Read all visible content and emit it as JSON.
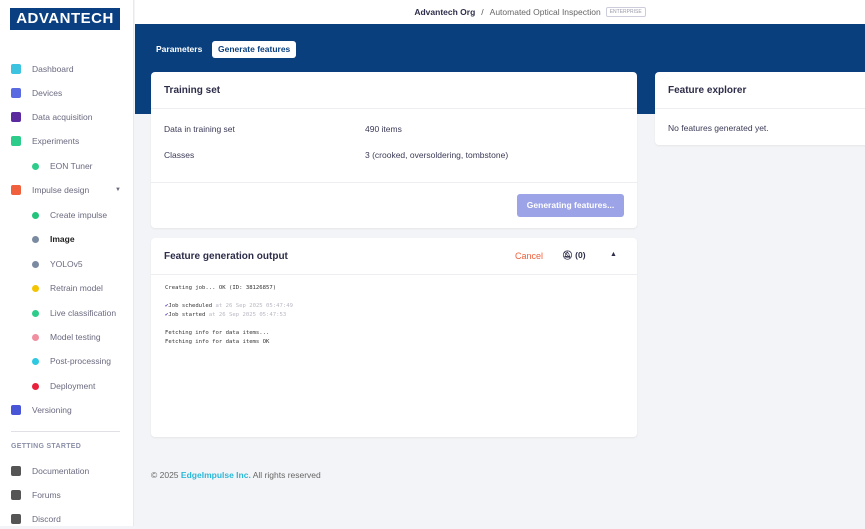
{
  "brand": {
    "logo": "ADVANTECH"
  },
  "header": {
    "org": "Advantech Org",
    "separator": "/",
    "project": "Automated Optical Inspection",
    "badge": "ENTERPRISE"
  },
  "sidebar": {
    "items": [
      {
        "label": "Dashboard",
        "icon": "monitor-icon",
        "color": "#3bc3e0"
      },
      {
        "label": "Devices",
        "icon": "chip-icon",
        "color": "#5a6ae0"
      },
      {
        "label": "Data acquisition",
        "icon": "database-icon",
        "color": "#5b2a9e"
      },
      {
        "label": "Experiments",
        "icon": "grid-icon",
        "color": "#2ecc8a"
      },
      {
        "label": "EON Tuner",
        "icon": "compass-icon",
        "color": "#2ecc8a"
      },
      {
        "label": "Impulse design",
        "icon": "pulse-icon",
        "color": "#f0603c"
      },
      {
        "label": "Create impulse",
        "icon": "dot-icon",
        "color": "#22c37a"
      },
      {
        "label": "Image",
        "icon": "dot-icon",
        "color": "#7a8aa0"
      },
      {
        "label": "YOLOv5",
        "icon": "dot-icon",
        "color": "#7a8aa0"
      },
      {
        "label": "Retrain model",
        "icon": "shuffle-icon",
        "color": "#f5c400"
      },
      {
        "label": "Live classification",
        "icon": "network-icon",
        "color": "#2ecc8a"
      },
      {
        "label": "Model testing",
        "icon": "clipboard-check-icon",
        "color": "#f08fa0"
      },
      {
        "label": "Post-processing",
        "icon": "upload-box-icon",
        "color": "#2ec8e0"
      },
      {
        "label": "Deployment",
        "icon": "gift-icon",
        "color": "#e8203c"
      },
      {
        "label": "Versioning",
        "icon": "branch-icon",
        "color": "#4a56d8"
      }
    ],
    "section": "GETTING STARTED",
    "help": [
      {
        "label": "Documentation",
        "icon": "docs-icon"
      },
      {
        "label": "Forums",
        "icon": "chat-icon"
      },
      {
        "label": "Discord",
        "icon": "discord-icon"
      }
    ]
  },
  "tabs": {
    "parameters": "Parameters",
    "generate": "Generate features"
  },
  "training": {
    "title": "Training set",
    "rows": [
      {
        "label": "Data in training set",
        "value": "490 items"
      },
      {
        "label": "Classes",
        "value": "3 (crooked, oversoldering, tombstone)"
      }
    ],
    "button": "Generating features..."
  },
  "output": {
    "title": "Feature generation output",
    "cancel": "Cancel",
    "notify": "(0)",
    "log": {
      "l1": "Creating job... OK (ID: 38126857)",
      "s1": "Job scheduled",
      "t1": "at 26 Sep 2025 05:47:49",
      "s2": "Job started",
      "t2": "at 26 Sep 2025 05:47:53",
      "l4": "Fetching info for data items...",
      "l5": "Fetching info for data items OK"
    }
  },
  "explorer": {
    "title": "Feature explorer",
    "empty": "No features generated yet."
  },
  "footer": {
    "copy": "© 2025",
    "company": "EdgeImpulse Inc.",
    "rights": "All rights reserved"
  },
  "colors": {
    "primary": "#0a3f7e",
    "cancel": "#f0603c",
    "button_disabled": "#9ca3e6",
    "link": "#2ab8d8"
  }
}
